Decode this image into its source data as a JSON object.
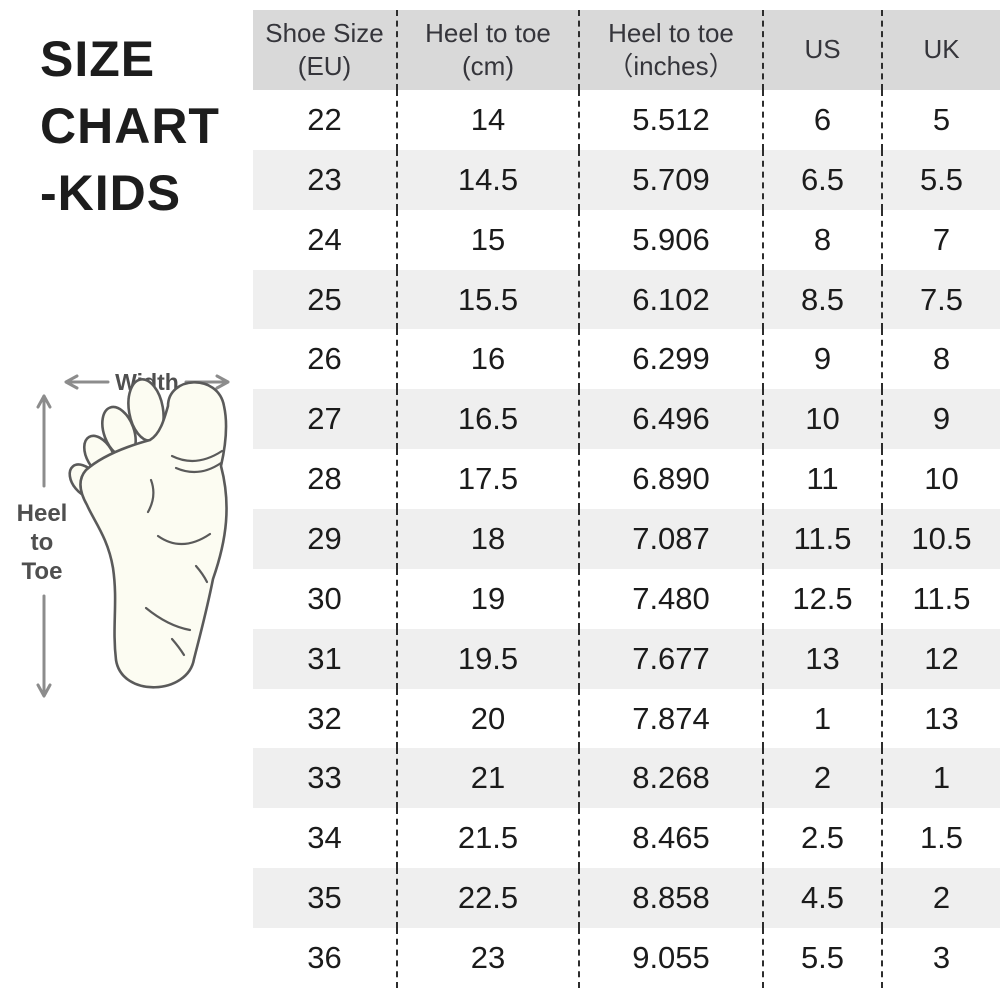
{
  "title": {
    "text": "SIZE CHART -KIDS",
    "lines": [
      "SIZE",
      "CHART",
      "-KIDS"
    ]
  },
  "diagram": {
    "width_label": "Width",
    "heel_to_toe_lines": [
      "Heel",
      "to",
      "Toe"
    ],
    "arrow_color": "#8c8c8c",
    "label_color": "#4f4f4f",
    "foot_fill": "#fcfcf2",
    "foot_stroke": "#5a5a5a"
  },
  "chart_data": {
    "type": "table",
    "title": "SIZE CHART -KIDS",
    "headers": [
      "Shoe Size (EU)",
      "Heel to toe (cm)",
      "Heel to toe (inches)",
      "US",
      "UK"
    ],
    "header_lines": [
      [
        "Shoe Size",
        "(EU)"
      ],
      [
        "Heel to toe",
        "(cm)"
      ],
      [
        "Heel to toe",
        "（inches）"
      ],
      [
        "US"
      ],
      [
        "UK"
      ]
    ],
    "rows": [
      [
        "22",
        "14",
        "5.512",
        "6",
        "5"
      ],
      [
        "23",
        "14.5",
        "5.709",
        "6.5",
        "5.5"
      ],
      [
        "24",
        "15",
        "5.906",
        "8",
        "7"
      ],
      [
        "25",
        "15.5",
        "6.102",
        "8.5",
        "7.5"
      ],
      [
        "26",
        "16",
        "6.299",
        "9",
        "8"
      ],
      [
        "27",
        "16.5",
        "6.496",
        "10",
        "9"
      ],
      [
        "28",
        "17.5",
        "6.890",
        "11",
        "10"
      ],
      [
        "29",
        "18",
        "7.087",
        "11.5",
        "10.5"
      ],
      [
        "30",
        "19",
        "7.480",
        "12.5",
        "11.5"
      ],
      [
        "31",
        "19.5",
        "7.677",
        "13",
        "12"
      ],
      [
        "32",
        "20",
        "7.874",
        "1",
        "13"
      ],
      [
        "33",
        "21",
        "8.268",
        "2",
        "1"
      ],
      [
        "34",
        "21.5",
        "8.465",
        "2.5",
        "1.5"
      ],
      [
        "35",
        "22.5",
        "8.858",
        "4.5",
        "2"
      ],
      [
        "36",
        "23",
        "9.055",
        "5.5",
        "3"
      ]
    ],
    "colors": {
      "header_bg": "#d9d9d9",
      "row_alt_bg": "#efefef",
      "row_bg": "#ffffff",
      "border": "#2d2d2d",
      "header_text": "#35353b",
      "cell_text": "#1b1b1b"
    },
    "layout_hints": {
      "row_striping": "alternating white / light gray",
      "column_dividers": "fine black dashed vertical lines",
      "grid": "no horizontal lines"
    }
  }
}
